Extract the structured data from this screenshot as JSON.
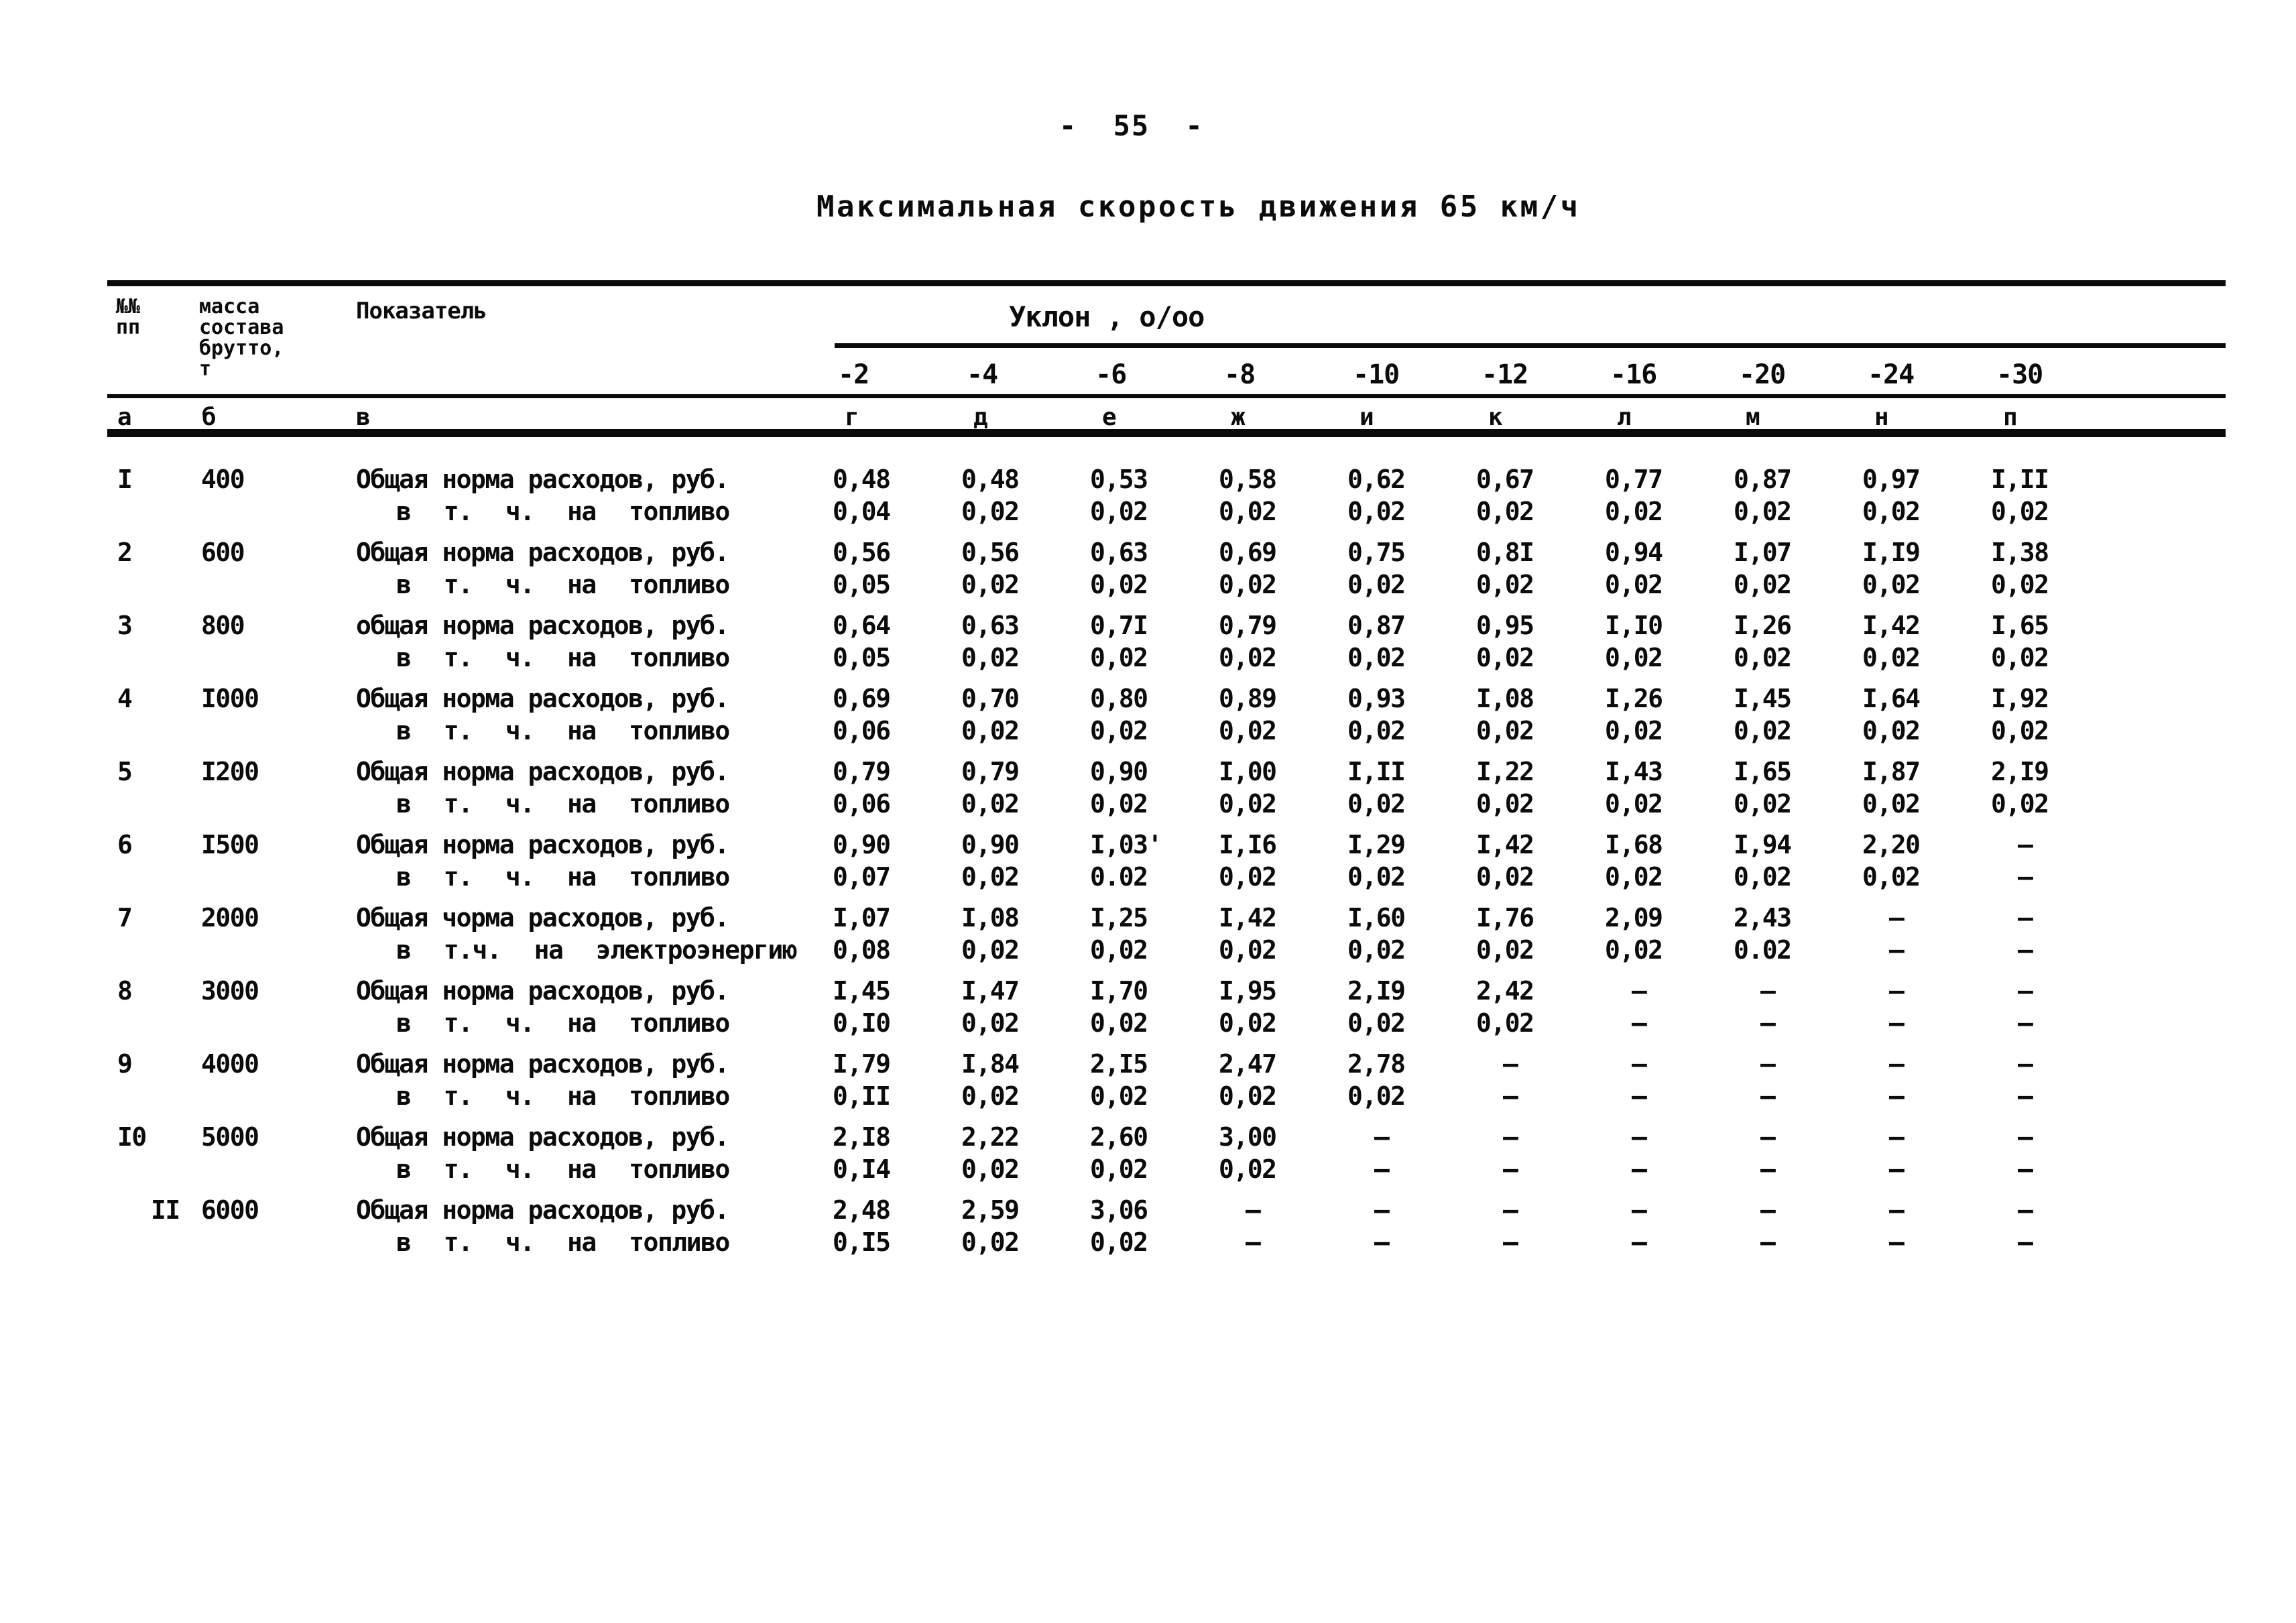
{
  "page": {
    "number": "-  55  -",
    "title": "Максимальная скорость движения 65 км/ч"
  },
  "table": {
    "header": {
      "num": "№№\nпп",
      "mass": "масса\nсостава\nбрутто,\nт",
      "indicator": "Показатель",
      "slope_title": "Уклон , о/оо",
      "slopes": [
        "-2",
        "-4",
        "-6",
        "-8",
        "-10",
        "-12",
        "-16",
        "-20",
        "-24",
        "-30"
      ],
      "letters_left": [
        "а",
        "б",
        "в"
      ],
      "letters_slopes": [
        "г",
        "д",
        "е",
        "ж",
        "и",
        "к",
        "л",
        "м",
        "н",
        "п"
      ]
    },
    "rows": [
      {
        "num": "I",
        "mass": "400",
        "num_indent": false,
        "main_label": "Общая норма расходов, руб.",
        "main_values": [
          "0,48",
          "0,48",
          "0,53",
          "0,58",
          "0,62",
          "0,67",
          "0,77",
          "0,87",
          "0,97",
          "I,II"
        ],
        "sub_label": "в т. ч. на топливо",
        "sub_values": [
          "0,04",
          "0,02",
          "0,02",
          "0,02",
          "0,02",
          "0,02",
          "0,02",
          "0,02",
          "0,02",
          "0,02"
        ]
      },
      {
        "num": "2",
        "mass": "600",
        "num_indent": false,
        "main_label": "Общая норма расходов, руб.",
        "main_values": [
          "0,56",
          "0,56",
          "0,63",
          "0,69",
          "0,75",
          "0,8I",
          "0,94",
          "I,07",
          "I,I9",
          "I,38"
        ],
        "sub_label": "в т. ч. на топливо",
        "sub_values": [
          "0,05",
          "0,02",
          "0,02",
          "0,02",
          "0,02",
          "0,02",
          "0,02",
          "0,02",
          "0,02",
          "0,02"
        ]
      },
      {
        "num": "3",
        "mass": "800",
        "num_indent": false,
        "main_label": "общая норма расходов, руб.",
        "main_values": [
          "0,64",
          "0,63",
          "0,7I",
          "0,79",
          "0,87",
          "0,95",
          "I,I0",
          "I,26",
          "I,42",
          "I,65"
        ],
        "sub_label": "в т. ч. на топливо",
        "sub_values": [
          "0,05",
          "0,02",
          "0,02",
          "0,02",
          "0,02",
          "0,02",
          "0,02",
          "0,02",
          "0,02",
          "0,02"
        ]
      },
      {
        "num": "4",
        "mass": "I000",
        "num_indent": false,
        "main_label": "Общая норма расходов, руб.",
        "main_values": [
          "0,69",
          "0,70",
          "0,80",
          "0,89",
          "0,93",
          "I,08",
          "I,26",
          "I,45",
          "I,64",
          "I,92"
        ],
        "sub_label": "в т. ч. на топливо",
        "sub_values": [
          "0,06",
          "0,02",
          "0,02",
          "0,02",
          "0,02",
          "0,02",
          "0,02",
          "0,02",
          "0,02",
          "0,02"
        ]
      },
      {
        "num": "5",
        "mass": "I200",
        "num_indent": false,
        "main_label": "Общая норма расходов, руб.",
        "main_values": [
          "0,79",
          "0,79",
          "0,90",
          "I,00",
          "I,II",
          "I,22",
          "I,43",
          "I,65",
          "I,87",
          "2,I9"
        ],
        "sub_label": "в т. ч. на топливо",
        "sub_values": [
          "0,06",
          "0,02",
          "0,02",
          "0,02",
          "0,02",
          "0,02",
          "0,02",
          "0,02",
          "0,02",
          "0,02"
        ]
      },
      {
        "num": "6",
        "mass": "I500",
        "num_indent": false,
        "main_label": "Общая норма расходов, руб.",
        "main_values": [
          "0,90",
          "0,90",
          "I,03'",
          "I,I6",
          "I,29",
          "I,42",
          "I,68",
          "I,94",
          "2,20",
          "–"
        ],
        "sub_label": "в т. ч. на топливо",
        "sub_values": [
          "0,07",
          "0,02",
          "0.02",
          "0,02",
          "0,02",
          "0,02",
          "0,02",
          "0,02",
          "0,02",
          "–"
        ]
      },
      {
        "num": "7",
        "mass": "2000",
        "num_indent": false,
        "main_label": "Общая чорма расходов, руб.",
        "main_values": [
          "I,07",
          "I,08",
          "I,25",
          "I,42",
          "I,60",
          "I,76",
          "2,09",
          "2,43",
          "–",
          "–"
        ],
        "sub_label": "в т.ч. на электроэнергию",
        "sub_values": [
          "0,08",
          "0,02",
          "0,02",
          "0,02",
          "0,02",
          "0,02",
          "0,02",
          "0.02",
          "–",
          "–"
        ]
      },
      {
        "num": "8",
        "mass": "3000",
        "num_indent": false,
        "main_label": "Общая норма расходов, руб.",
        "main_values": [
          "I,45",
          "I,47",
          "I,70",
          "I,95",
          "2,I9",
          "2,42",
          "–",
          "–",
          "–",
          "–"
        ],
        "sub_label": "в т. ч. на топливо",
        "sub_values": [
          "0,I0",
          "0,02",
          "0,02",
          "0,02",
          "0,02",
          "0,02",
          "–",
          "–",
          "–",
          "–"
        ]
      },
      {
        "num": "9",
        "mass": "4000",
        "num_indent": false,
        "main_label": "Общая норма расходов, руб.",
        "main_values": [
          "I,79",
          "I,84",
          "2,I5",
          "2,47",
          "2,78",
          "–",
          "–",
          "–",
          "–",
          "–"
        ],
        "sub_label": "в т. ч. на топливо",
        "sub_values": [
          "0,II",
          "0,02",
          "0,02",
          "0,02",
          "0,02",
          "–",
          "–",
          "–",
          "–",
          "–"
        ]
      },
      {
        "num": "I0",
        "mass": "5000",
        "num_indent": false,
        "main_label": "Общая норма расходов, руб.",
        "main_values": [
          "2,I8",
          "2,22",
          "2,60",
          "3,00",
          "–",
          "–",
          "–",
          "–",
          "–",
          "–"
        ],
        "sub_label": "в т. ч. на топливо",
        "sub_values": [
          "0,I4",
          "0,02",
          "0,02",
          "0,02",
          "–",
          "–",
          "–",
          "–",
          "–",
          "–"
        ]
      },
      {
        "num": "II",
        "mass": "6000",
        "num_indent": true,
        "main_label": "Общая норма расходов, руб.",
        "main_values": [
          "2,48",
          "2,59",
          "3,06",
          "–",
          "–",
          "–",
          "–",
          "–",
          "–",
          "–"
        ],
        "sub_label": "в т. ч. на топливо",
        "sub_values": [
          "0,I5",
          "0,02",
          "0,02",
          "–",
          "–",
          "–",
          "–",
          "–",
          "–",
          "–"
        ]
      }
    ]
  }
}
